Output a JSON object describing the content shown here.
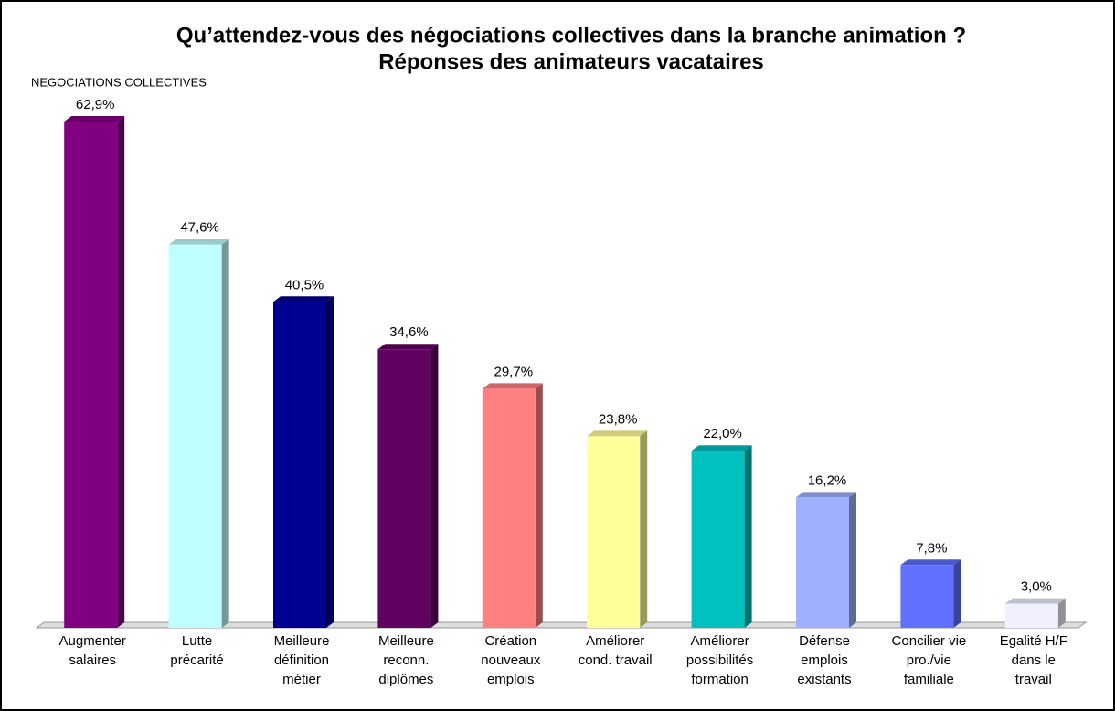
{
  "chart_data": {
    "type": "bar",
    "title": "Qu’attendez-vous des négociations collectives dans la branche animation ?",
    "subtitle": "Réponses des animateurs vacataires",
    "annotation": "NEGOCIATIONS COLLECTIVES",
    "categories": [
      [
        "Augmenter",
        "salaires"
      ],
      [
        "Lutte",
        "précarité"
      ],
      [
        "Meilleure",
        "définition",
        "métier"
      ],
      [
        "Meilleure",
        "reconn.",
        "diplômes"
      ],
      [
        "Création",
        "nouveaux",
        "emplois"
      ],
      [
        "Améliorer",
        "cond. travail"
      ],
      [
        "Améliorer",
        "possibilités",
        "formation"
      ],
      [
        "Défense",
        "emplois",
        "existants"
      ],
      [
        "Concilier vie",
        "pro./vie",
        "familiale"
      ],
      [
        "Egalité H/F",
        "dans le",
        "travail"
      ]
    ],
    "values": [
      62.9,
      47.6,
      40.5,
      34.6,
      29.7,
      23.8,
      22.0,
      16.2,
      7.8,
      3.0
    ],
    "value_labels": [
      "62,9%",
      "47,6%",
      "40,5%",
      "34,6%",
      "29,7%",
      "23,8%",
      "22,0%",
      "16,2%",
      "7,8%",
      "3,0%"
    ],
    "colors": [
      "#800080",
      "#c0ffff",
      "#000090",
      "#600060",
      "#ff8080",
      "#ffff99",
      "#00c0c0",
      "#a0b0ff",
      "#6070ff",
      "#f0f0ff"
    ]
  }
}
